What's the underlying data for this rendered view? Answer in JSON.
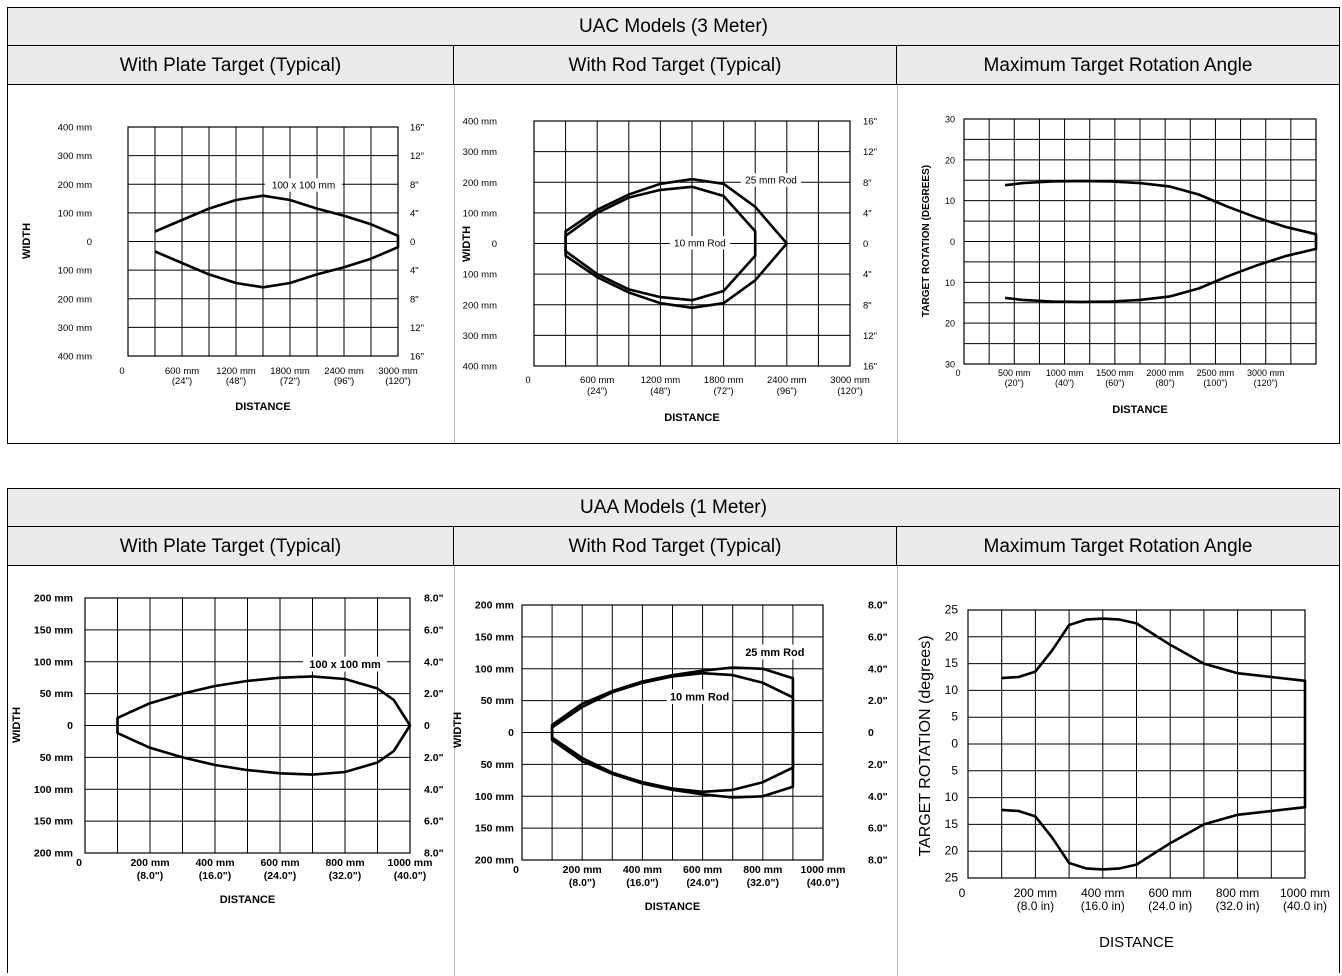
{
  "sections": [
    {
      "title": "UAC Models (3 Meter)",
      "columns": [
        "With Plate Target (Typical)",
        "With Rod Target (Typical)",
        "Maximum Target Rotation Angle"
      ]
    },
    {
      "title": "UAA Models (1 Meter)",
      "columns": [
        "With Plate Target (Typical)",
        "With Rod Target (Typical)",
        "Maximum Target Rotation Angle"
      ]
    }
  ],
  "chart_data": [
    {
      "type": "line",
      "title": "With Plate Target (Typical)",
      "xlabel": "DISTANCE",
      "ylabel": "WIDTH",
      "xlim": [
        0,
        3000
      ],
      "ylim": [
        -400,
        400
      ],
      "grid": true,
      "xticks_major": [
        "0",
        "600 mm",
        "1200 mm",
        "1800 mm",
        "2400 mm",
        "3000 mm"
      ],
      "xticks_minor": [
        "(24\")",
        "(48\")",
        "(72\")",
        "(96\")",
        "(120\")"
      ],
      "yticks_left": [
        "400 mm",
        "300 mm",
        "200 mm",
        "100 mm",
        "0",
        "100 mm",
        "200 mm",
        "300 mm",
        "400 mm"
      ],
      "yticks_right": [
        "16\"",
        "12\"",
        "8\"",
        "4\"",
        "0",
        "4\"",
        "8\"",
        "12\"",
        "16\""
      ],
      "series": [
        {
          "name": "100 x 100 mm",
          "x": [
            300,
            600,
            900,
            1200,
            1500,
            1800,
            2100,
            2400,
            2700,
            3000
          ],
          "y": [
            35,
            75,
            115,
            145,
            160,
            145,
            115,
            90,
            60,
            20
          ],
          "mirror": true
        }
      ],
      "annotations": [
        {
          "text": "100 x 100 mm",
          "x": 1950,
          "y": 195
        }
      ]
    },
    {
      "type": "line",
      "title": "With Rod Target (Typical)",
      "xlabel": "DISTANCE",
      "ylabel": "WIDTH",
      "xlim": [
        0,
        3000
      ],
      "ylim": [
        -400,
        400
      ],
      "grid": true,
      "xticks_major": [
        "0",
        "600 mm",
        "1200 mm",
        "1800 mm",
        "2400 mm",
        "3000 mm"
      ],
      "xticks_minor": [
        "(24\")",
        "(48\")",
        "(72\")",
        "(96\")",
        "(120\")"
      ],
      "yticks_left": [
        "400 mm",
        "300 mm",
        "200 mm",
        "100 mm",
        "0",
        "100 mm",
        "200 mm",
        "300 mm",
        "400 mm"
      ],
      "yticks_right": [
        "16\"",
        "12\"",
        "8\"",
        "4\"",
        "0",
        "4\"",
        "8\"",
        "12\"",
        "16\""
      ],
      "series": [
        {
          "name": "25 mm Rod",
          "x": [
            300,
            600,
            900,
            1200,
            1500,
            1800,
            2100,
            2400
          ],
          "y": [
            40,
            110,
            160,
            195,
            210,
            195,
            120,
            0
          ],
          "mirror": true
        },
        {
          "name": "10 mm Rod",
          "x": [
            300,
            600,
            900,
            1200,
            1500,
            1800,
            2100
          ],
          "y": [
            25,
            100,
            150,
            175,
            185,
            155,
            40
          ],
          "closed_at_end": true,
          "mirror": true
        }
      ],
      "annotations": [
        {
          "text": "25 mm Rod",
          "x": 2250,
          "y": 205
        },
        {
          "text": "10 mm Rod",
          "x": 1575,
          "y": 0
        }
      ]
    },
    {
      "type": "line",
      "title": "Maximum Target Rotation Angle",
      "xlabel": "DISTANCE",
      "ylabel": "TARGET ROTATION (DEGREES)",
      "xlim": [
        0,
        3000
      ],
      "ylim": [
        -30,
        30
      ],
      "grid": true,
      "xticks_major": [
        "0",
        "500 mm",
        "1000 mm",
        "1500 mm",
        "2000 mm",
        "2500 mm",
        "3000 mm"
      ],
      "xticks_minor": [
        "(20\")",
        "(40\")",
        "(60\")",
        "(80\")",
        "(100\")",
        "(120\")"
      ],
      "yticks_left": [
        "30",
        "20",
        "10",
        "0",
        "10",
        "20",
        "30"
      ],
      "series": [
        {
          "name": "",
          "x": [
            350,
            500,
            750,
            1000,
            1250,
            1500,
            1750,
            2000,
            2250,
            2500,
            2750,
            3000
          ],
          "y": [
            13.8,
            14.3,
            14.7,
            14.8,
            14.7,
            14.3,
            13.5,
            11.5,
            8.5,
            5.8,
            3.5,
            1.8
          ],
          "mirror": true
        }
      ]
    },
    {
      "type": "line",
      "title": "With Plate Target (Typical)",
      "xlabel": "DISTANCE",
      "ylabel": "WIDTH",
      "xlim": [
        0,
        1000
      ],
      "ylim": [
        -200,
        200
      ],
      "grid": true,
      "xticks_major": [
        "0",
        "200 mm",
        "400 mm",
        "600 mm",
        "800 mm",
        "1000 mm"
      ],
      "xticks_minor": [
        "(8.0\")",
        "(16.0\")",
        "(24.0\")",
        "(32.0\")",
        "(40.0\")"
      ],
      "yticks_left": [
        "200 mm",
        "150 mm",
        "100 mm",
        "50 mm",
        "0",
        "50 mm",
        "100 mm",
        "150 mm",
        "200 mm"
      ],
      "yticks_right": [
        "8.0\"",
        "6.0\"",
        "4.0\"",
        "2.0\"",
        "0",
        "2.0\"",
        "4.0\"",
        "6.0\"",
        "8.0\""
      ],
      "series": [
        {
          "name": "100 x 100 mm",
          "x": [
            100,
            100,
            200,
            300,
            400,
            500,
            600,
            700,
            800,
            900,
            950,
            1000
          ],
          "y": [
            0,
            12,
            35,
            50,
            62,
            70,
            75,
            77,
            73,
            58,
            40,
            0
          ],
          "mirror": true
        }
      ],
      "annotations": [
        {
          "text": "100 x 100 mm",
          "x": 800,
          "y": 95
        }
      ]
    },
    {
      "type": "line",
      "title": "With Rod Target (Typical)",
      "xlabel": "DISTANCE",
      "ylabel": "WIDTH",
      "xlim": [
        0,
        1000
      ],
      "ylim": [
        -200,
        200
      ],
      "grid": true,
      "xticks_major": [
        "0",
        "200 mm",
        "400 mm",
        "600 mm",
        "800 mm",
        "1000 mm"
      ],
      "xticks_minor": [
        "(8.0\")",
        "(16.0\")",
        "(24.0\")",
        "(32.0\")",
        "(40.0\")"
      ],
      "yticks_left": [
        "200 mm",
        "150 mm",
        "100 mm",
        "50 mm",
        "0",
        "50 mm",
        "100 mm",
        "150 mm",
        "200 mm"
      ],
      "yticks_right": [
        "8.0\"",
        "6.0\"",
        "4.0\"",
        "2.0\"",
        "0",
        "2.0\"",
        "4.0\"",
        "6.0\"",
        "8.0\""
      ],
      "series": [
        {
          "name": "25 mm Rod",
          "x": [
            100,
            200,
            300,
            400,
            500,
            600,
            700,
            800,
            900,
            900
          ],
          "y": [
            12,
            45,
            65,
            80,
            90,
            97,
            102,
            100,
            85,
            0
          ],
          "mirror": true
        },
        {
          "name": "10 mm Rod",
          "x": [
            100,
            200,
            300,
            400,
            500,
            600,
            700,
            800,
            900,
            900
          ],
          "y": [
            8,
            40,
            63,
            78,
            88,
            93,
            90,
            78,
            55,
            0
          ],
          "mirror": true
        }
      ],
      "annotations": [
        {
          "text": "25 mm Rod",
          "x": 840,
          "y": 125
        },
        {
          "text": "10 mm Rod",
          "x": 590,
          "y": 55
        }
      ]
    },
    {
      "type": "line",
      "title": "Maximum Target Rotation Angle",
      "xlabel": "DISTANCE",
      "ylabel": "TARGET ROTATION (degrees)",
      "xlim": [
        0,
        1000
      ],
      "ylim": [
        -25,
        25
      ],
      "grid": true,
      "xticks_major": [
        "0",
        "200 mm",
        "400 mm",
        "600 mm",
        "800 mm",
        "1000 mm"
      ],
      "xticks_minor": [
        "(8.0 in)",
        "(16.0 in)",
        "(24.0 in)",
        "(32.0 in)",
        "(40.0 in)"
      ],
      "yticks_left": [
        "25",
        "20",
        "15",
        "10",
        "5",
        "0",
        "5",
        "10",
        "15",
        "20",
        "25"
      ],
      "series": [
        {
          "name": "",
          "x": [
            100,
            150,
            200,
            250,
            300,
            350,
            400,
            450,
            500,
            600,
            700,
            800,
            900,
            1000,
            1000
          ],
          "y": [
            12.3,
            12.5,
            13.5,
            17.5,
            22.2,
            23.2,
            23.4,
            23.2,
            22.5,
            18.5,
            15,
            13.2,
            12.5,
            11.8,
            0
          ],
          "mirror": true
        }
      ]
    }
  ]
}
